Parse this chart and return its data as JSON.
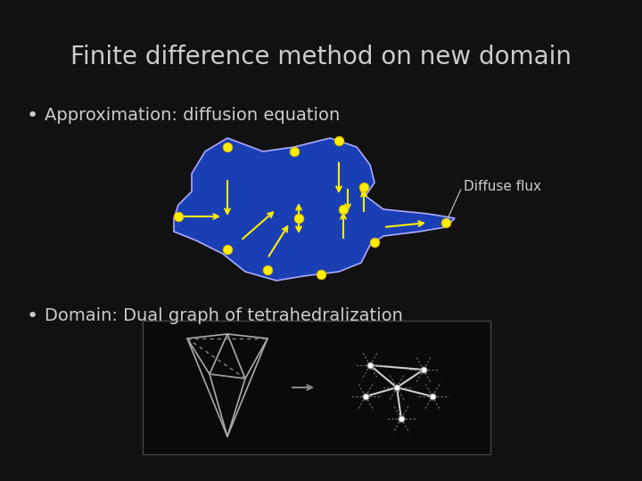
{
  "title": "Finite difference method on new domain",
  "title_color": "#cccccc",
  "title_fontsize": 20,
  "bg_color": "#111111",
  "bullet1": "Approximation: diffusion equation",
  "bullet2": "Domain: Dual graph of tetrahedralization",
  "bullet_color": "#cccccc",
  "bullet_fontsize": 14,
  "diffuse_flux_label": "Diffuse flux",
  "blob_color": "#1a3fb5",
  "blob_outline_color": "#aaaaff",
  "arrow_color": "#ffee00",
  "node_color": "#ffee00",
  "node_edge": "#ccaa00",
  "annotation_color": "#cccccc",
  "bottom_box_color": "#111111",
  "bottom_box_edge": "#555555"
}
